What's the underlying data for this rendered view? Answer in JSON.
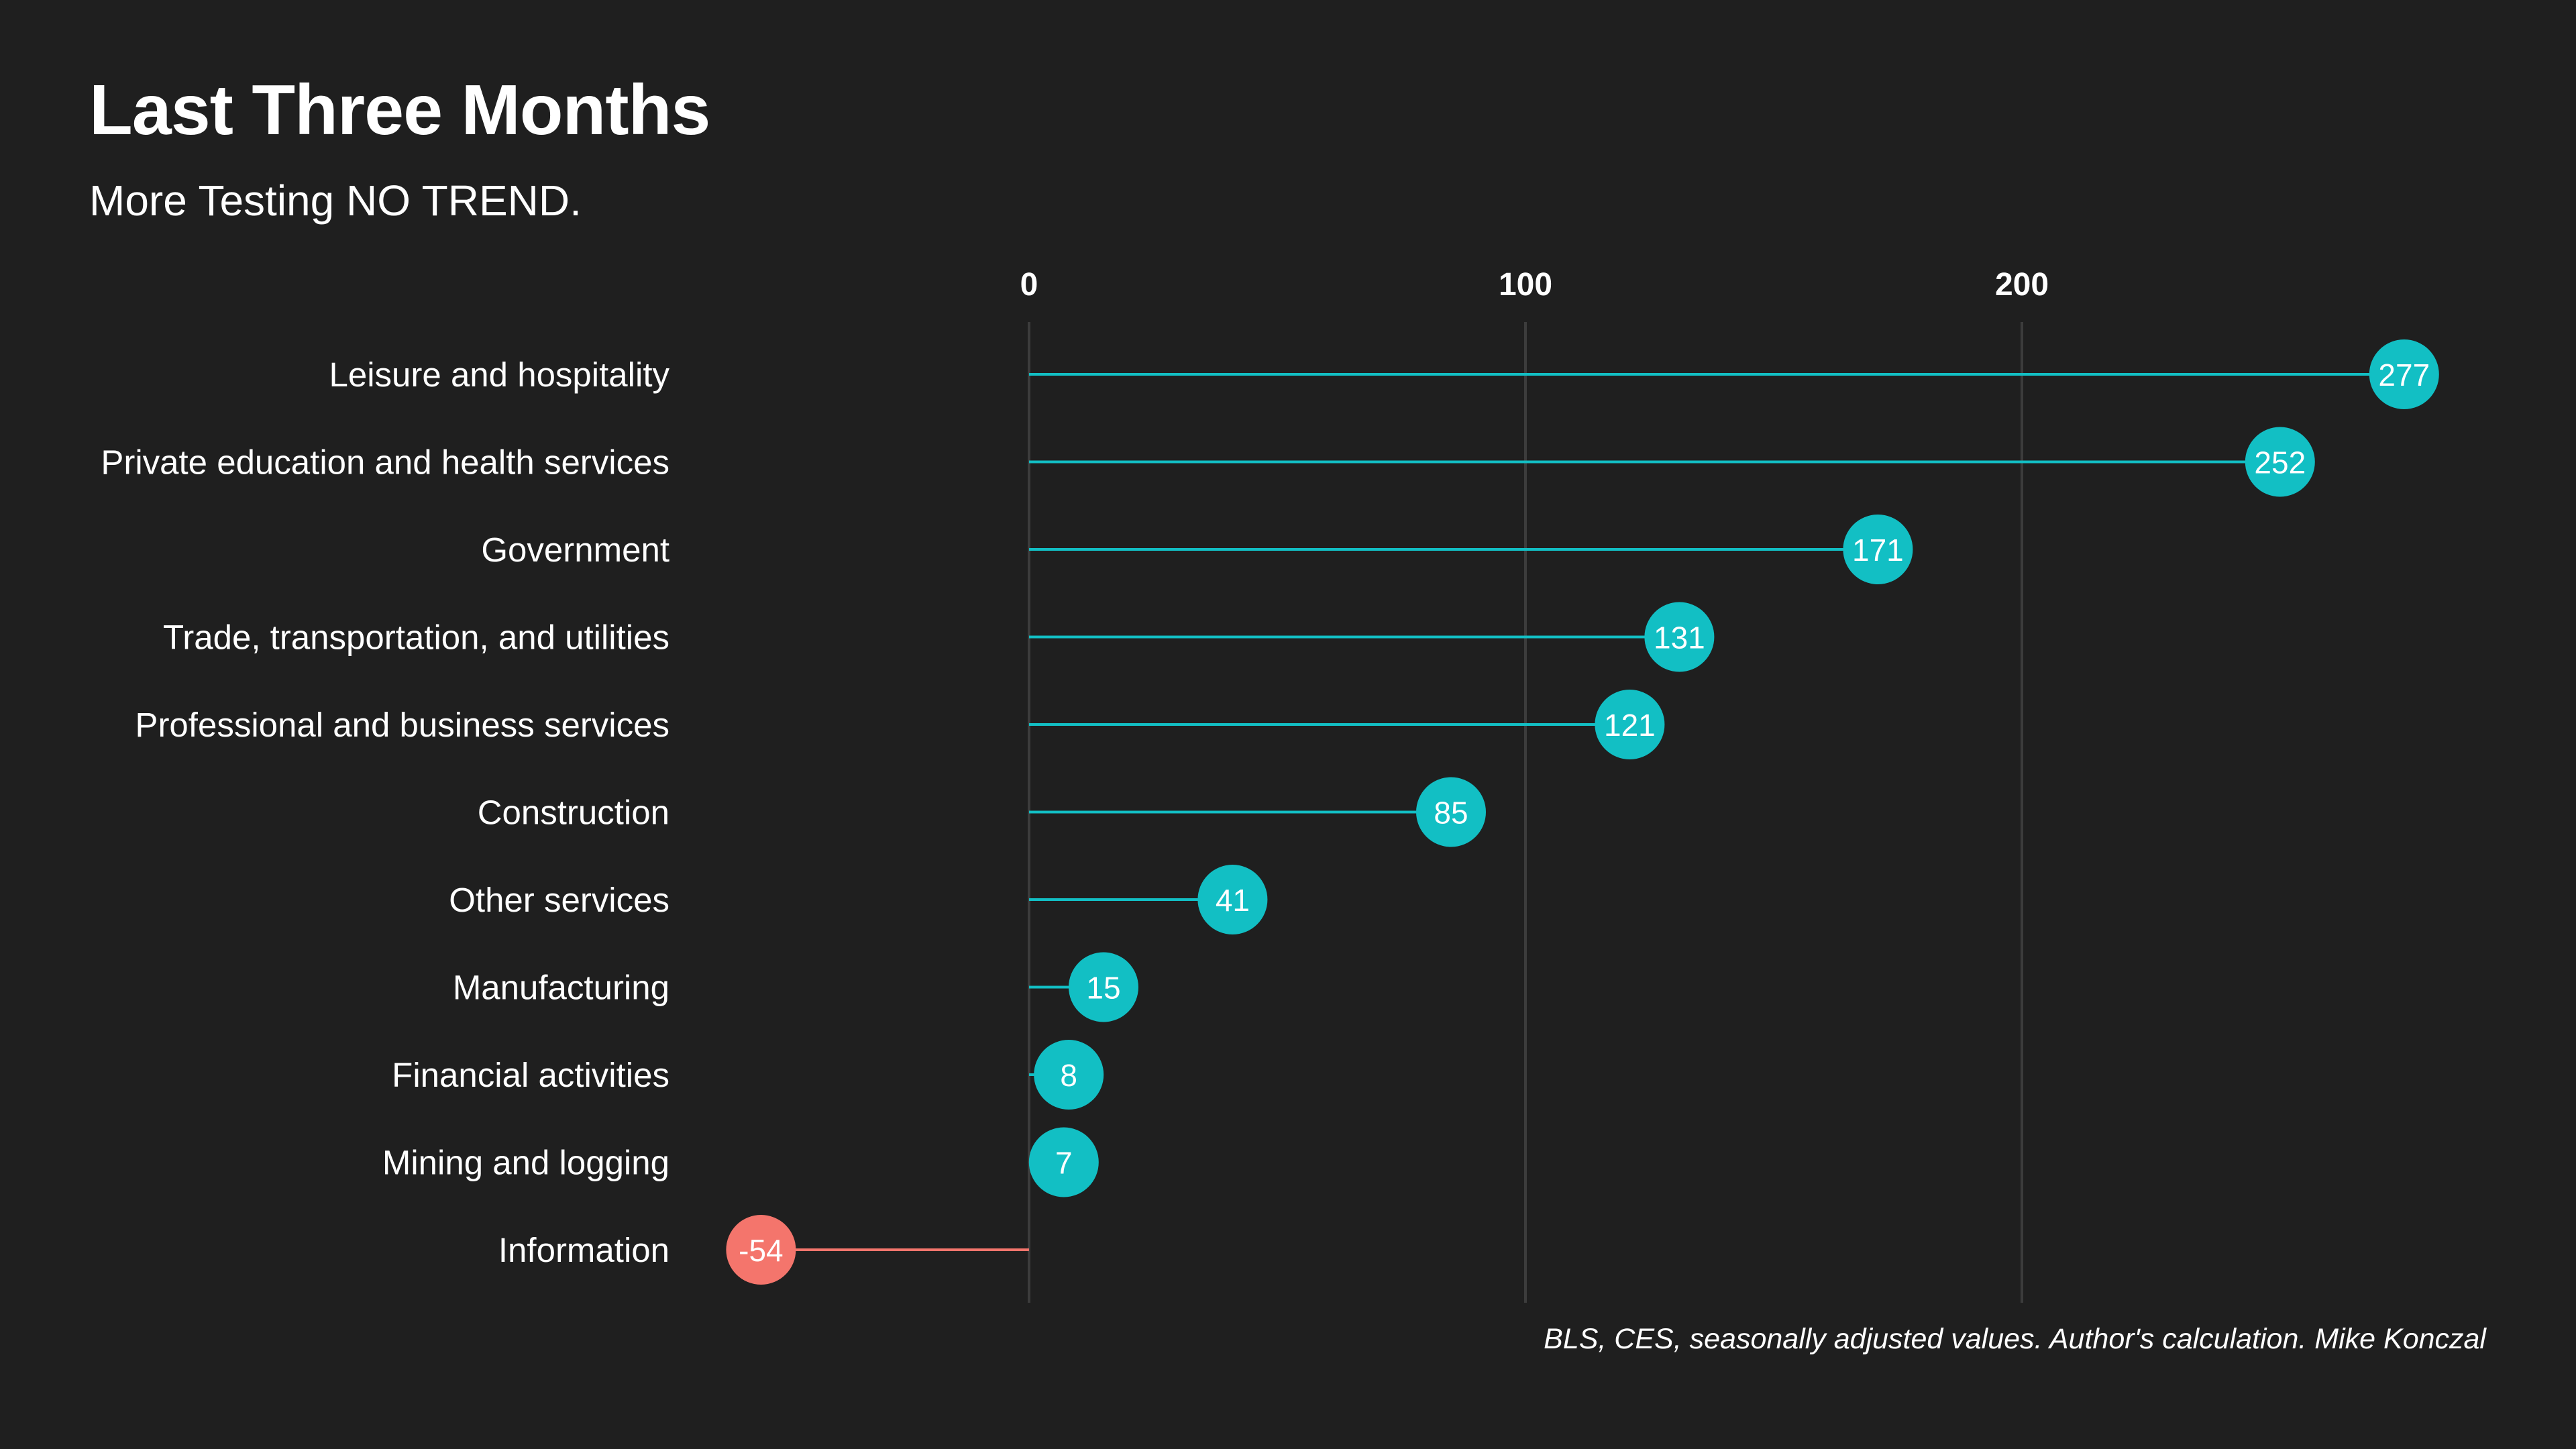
{
  "title": "Last Three Months",
  "subtitle": "More Testing NO TREND.",
  "source": "BLS, CES, seasonally adjusted values. Author's calculation. Mike Konczal",
  "colors": {
    "background": "#1f1f1f",
    "positive": "#12bfc4",
    "negative": "#f4756c",
    "grid": "#3c3c3c",
    "text": "#ffffff"
  },
  "chart_data": {
    "type": "lollipop",
    "orientation": "horizontal",
    "title": "Last Three Months",
    "subtitle": "More Testing NO TREND.",
    "xlim": [
      -54,
      280
    ],
    "x_ticks": [
      0,
      100,
      200
    ],
    "x_tick_labels": [
      "0",
      "100",
      "200"
    ],
    "grid": true,
    "categories": [
      "Leisure and hospitality",
      "Private education and health services",
      "Government",
      "Trade, transportation, and utilities",
      "Professional and business services",
      "Construction",
      "Other services",
      "Manufacturing",
      "Financial activities",
      "Mining and logging",
      "Information"
    ],
    "values": [
      277,
      252,
      171,
      131,
      121,
      85,
      41,
      15,
      8,
      7,
      -54
    ],
    "value_labels": [
      "277",
      "252",
      "171",
      "131",
      "121",
      "85",
      "41",
      "15",
      "8",
      "7",
      "-54"
    ]
  }
}
